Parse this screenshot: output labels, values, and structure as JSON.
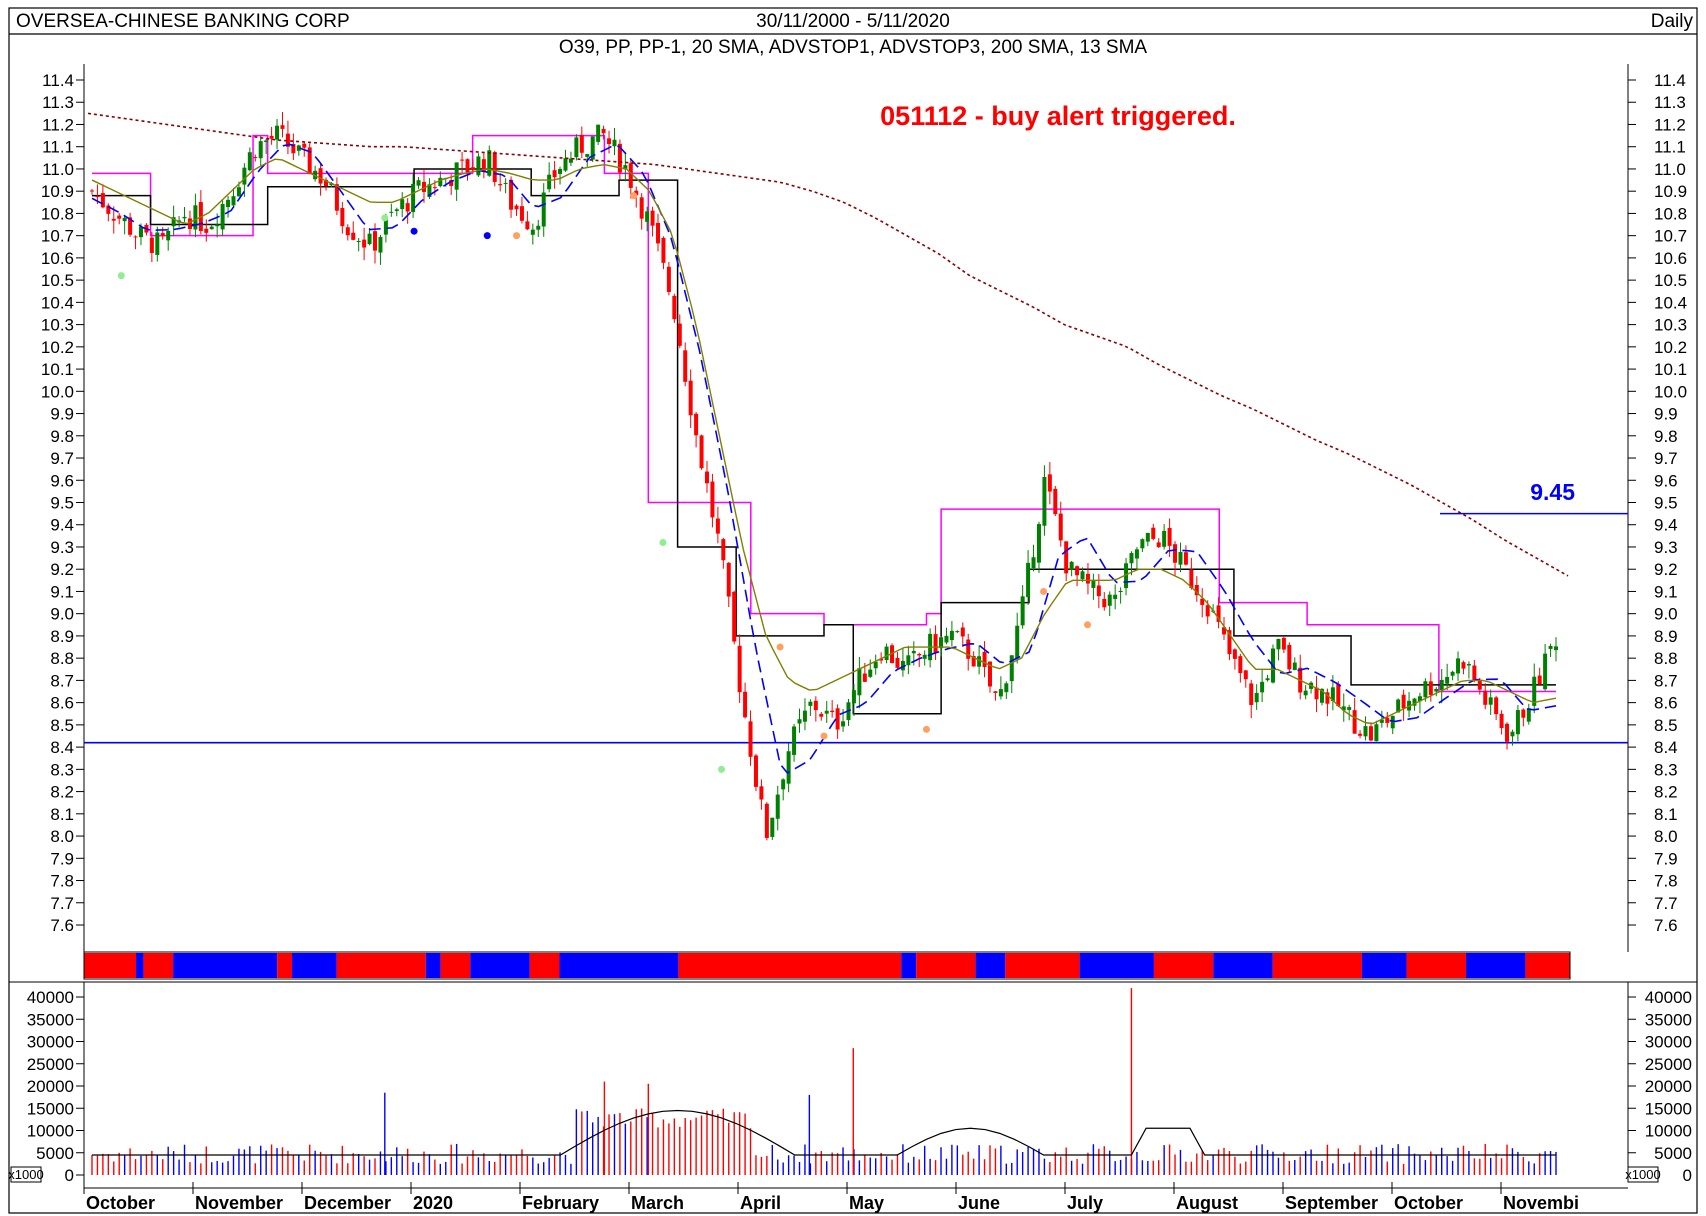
{
  "chart_data": {
    "type": "candlestick",
    "title": "OVERSEA-CHINESE BANKING CORP",
    "date_range": "30/11/2000 - 5/11/2020",
    "period": "Daily",
    "indicators": "O39, PP, PP-1, 20 SMA, ADVSTOP1, ADVSTOP3, 200 SMA, 13 SMA",
    "annotation": "051112 - buy alert triggered.",
    "price_axis": {
      "ylim": [
        7.5,
        11.5
      ],
      "ticks": [
        "11.4",
        "11.3",
        "11.2",
        "11.1",
        "11.0",
        "10.9",
        "10.8",
        "10.7",
        "10.6",
        "10.5",
        "10.4",
        "10.3",
        "10.2",
        "10.1",
        "10.0",
        "9.9",
        "9.8",
        "9.7",
        "9.6",
        "9.5",
        "9.4",
        "9.3",
        "9.2",
        "9.1",
        "9.0",
        "8.9",
        "8.8",
        "8.7",
        "8.6",
        "8.5",
        "8.4",
        "8.3",
        "8.2",
        "8.1",
        "8.0",
        "7.9",
        "7.8",
        "7.7",
        "7.6"
      ]
    },
    "volume_axis": {
      "ylim": [
        0,
        45000
      ],
      "ticks": [
        "40000",
        "35000",
        "30000",
        "25000",
        "20000",
        "15000",
        "10000",
        "5000",
        "0"
      ],
      "multiplier": "x1000"
    },
    "months": [
      "October",
      "November",
      "December",
      "2020",
      "February",
      "March",
      "April",
      "May",
      "June",
      "July",
      "August",
      "September",
      "October",
      "Novembi"
    ],
    "levels": [
      {
        "value": 8.42,
        "label": "",
        "color": "#0000ff",
        "from": "start"
      },
      {
        "value": 9.45,
        "label": "9.45",
        "color": "#0000ff",
        "from": "2020-09"
      }
    ],
    "series": [
      {
        "values": [
          10.9,
          10.8,
          10.7,
          10.65,
          10.8,
          10.75,
          10.9,
          11.1,
          11.15,
          11.05,
          10.95,
          10.75,
          10.65,
          10.8,
          10.9,
          10.95,
          11.0,
          11.05,
          10.85,
          10.75,
          11.0,
          11.1,
          11.15,
          11.0,
          10.75,
          10.4,
          9.8,
          9.3,
          8.6,
          8.0,
          8.4,
          8.6,
          8.5,
          8.7,
          8.85,
          8.75,
          8.85,
          8.9,
          8.8,
          8.6,
          9.0,
          9.6,
          9.2,
          9.1,
          9.05,
          9.3,
          9.35,
          9.2,
          9.05,
          8.8,
          8.6,
          8.85,
          8.7,
          8.65,
          8.55,
          8.45,
          8.55,
          8.65,
          8.7,
          8.8,
          8.6,
          8.45,
          8.65,
          8.9
        ]
      },
      {
        "values": [
          10.95,
          10.9,
          10.85,
          10.8,
          10.75,
          10.8,
          10.9,
          11.0,
          11.05,
          11.0,
          10.95,
          10.9,
          10.85,
          10.85,
          10.9,
          10.95,
          10.98,
          11.0,
          10.98,
          10.95,
          10.95,
          11.0,
          11.02,
          11.0,
          10.9,
          10.7,
          10.3,
          9.8,
          9.3,
          8.9,
          8.7,
          8.65,
          8.7,
          8.75,
          8.8,
          8.85,
          8.85,
          8.85,
          8.8,
          8.75,
          8.8,
          9.0,
          9.15,
          9.15,
          9.15,
          9.2,
          9.2,
          9.15,
          9.05,
          8.9,
          8.75,
          8.75,
          8.7,
          8.65,
          8.55,
          8.5,
          8.55,
          8.6,
          8.65,
          8.7,
          8.7,
          8.65,
          8.6,
          8.62
        ]
      },
      {
        "values": [
          11.25,
          11.23,
          11.21,
          11.19,
          11.17,
          11.15,
          11.13,
          11.12,
          11.11,
          11.1,
          11.1,
          11.09,
          11.08,
          11.07,
          11.06,
          11.05,
          11.04,
          11.03,
          11.02,
          11.0,
          10.98,
          10.96,
          10.94,
          10.9,
          10.85,
          10.78,
          10.7,
          10.62,
          10.52,
          10.45,
          10.38,
          10.3,
          10.25,
          10.2,
          10.12,
          10.05,
          9.98,
          9.92,
          9.85,
          9.78,
          9.72,
          9.65,
          9.58,
          9.5,
          9.42,
          9.33,
          9.25,
          9.17
        ]
      }
    ]
  },
  "colors": {
    "up": "#008000",
    "down": "#ff0000",
    "sma13": "#0000ff",
    "sma20": "#808000",
    "sma200": "#8b0000",
    "stop1": "#ff00ff",
    "stop3": "#000000",
    "band_red": "#ff0000",
    "band_blue": "#0000ff"
  }
}
